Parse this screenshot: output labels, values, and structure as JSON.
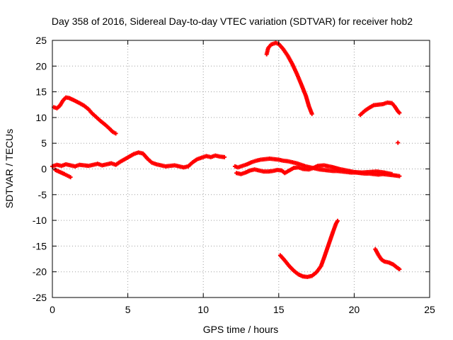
{
  "chart_data": {
    "type": "scatter",
    "title": "Day 358 of 2016, Sidereal Day-to-day VTEC variation (SDTVAR) for receiver hob2",
    "xlabel": "GPS time / hours",
    "ylabel": "SDTVAR / TECUs",
    "xlim": [
      0,
      25
    ],
    "ylim": [
      -25,
      25
    ],
    "xticks": [
      0,
      5,
      10,
      15,
      20,
      25
    ],
    "yticks": [
      -25,
      -20,
      -15,
      -10,
      -5,
      0,
      5,
      10,
      15,
      20,
      25
    ],
    "xtick_labels": [
      "0",
      "5",
      "10",
      "15",
      "20",
      "25"
    ],
    "ytick_labels": [
      "-25",
      "-20",
      "-15",
      "-10",
      "-5",
      "0",
      "5",
      "10",
      "15",
      "20",
      "25"
    ],
    "grid": true,
    "grid_style": "dotted",
    "marker": "plus",
    "colors": {
      "series": "#ff0000",
      "grid": "#a0a0a0",
      "frame": "#000000"
    },
    "series": [
      {
        "points": [
          [
            0.1,
            12.0
          ],
          [
            0.3,
            11.8
          ],
          [
            0.5,
            12.3
          ],
          [
            0.7,
            13.3
          ],
          [
            0.9,
            13.9
          ],
          [
            1.1,
            13.8
          ],
          [
            1.4,
            13.4
          ],
          [
            1.8,
            12.8
          ],
          [
            2.1,
            12.3
          ],
          [
            2.4,
            11.6
          ],
          [
            2.6,
            10.9
          ],
          [
            2.9,
            10.1
          ],
          [
            3.2,
            9.3
          ],
          [
            3.5,
            8.6
          ],
          [
            3.8,
            7.8
          ],
          [
            4.0,
            7.2
          ],
          [
            4.2,
            6.9
          ]
        ]
      },
      {
        "points": [
          [
            0.0,
            0.5
          ],
          [
            0.3,
            0.8
          ],
          [
            0.6,
            0.6
          ],
          [
            0.9,
            0.9
          ],
          [
            1.2,
            0.7
          ],
          [
            1.5,
            0.5
          ],
          [
            1.8,
            0.8
          ],
          [
            2.1,
            0.7
          ],
          [
            2.4,
            0.6
          ],
          [
            2.7,
            0.8
          ],
          [
            3.0,
            1.0
          ],
          [
            3.3,
            0.7
          ],
          [
            3.6,
            0.9
          ],
          [
            3.9,
            1.1
          ],
          [
            4.2,
            0.8
          ],
          [
            4.5,
            1.4
          ],
          [
            4.8,
            1.9
          ],
          [
            5.1,
            2.4
          ],
          [
            5.4,
            2.9
          ],
          [
            5.7,
            3.2
          ],
          [
            6.0,
            3.0
          ],
          [
            6.3,
            2.0
          ],
          [
            6.6,
            1.2
          ],
          [
            6.9,
            0.9
          ],
          [
            7.2,
            0.7
          ],
          [
            7.5,
            0.5
          ],
          [
            7.8,
            0.6
          ],
          [
            8.1,
            0.7
          ],
          [
            8.4,
            0.5
          ],
          [
            8.7,
            0.3
          ],
          [
            9.0,
            0.5
          ],
          [
            9.3,
            1.3
          ],
          [
            9.6,
            1.9
          ],
          [
            9.9,
            2.2
          ],
          [
            10.2,
            2.5
          ],
          [
            10.5,
            2.3
          ],
          [
            10.8,
            2.6
          ],
          [
            11.1,
            2.4
          ],
          [
            11.4,
            2.3
          ],
          [
            12.1,
            0.5
          ],
          [
            12.3,
            0.3
          ],
          [
            12.6,
            0.6
          ],
          [
            12.9,
            0.9
          ],
          [
            13.2,
            1.3
          ],
          [
            13.5,
            1.6
          ],
          [
            13.8,
            1.8
          ],
          [
            14.1,
            1.9
          ],
          [
            14.4,
            2.0
          ],
          [
            14.7,
            1.9
          ],
          [
            15.0,
            1.8
          ],
          [
            15.3,
            1.6
          ],
          [
            15.6,
            1.5
          ],
          [
            15.9,
            1.3
          ],
          [
            16.2,
            1.1
          ],
          [
            16.5,
            0.8
          ],
          [
            16.8,
            0.5
          ],
          [
            17.1,
            0.3
          ],
          [
            17.4,
            0.1
          ],
          [
            17.7,
            -0.1
          ],
          [
            18.0,
            -0.2
          ],
          [
            18.3,
            -0.3
          ],
          [
            18.6,
            -0.4
          ],
          [
            18.9,
            -0.4
          ],
          [
            19.2,
            -0.5
          ],
          [
            19.5,
            -0.6
          ],
          [
            19.8,
            -0.7
          ],
          [
            20.1,
            -0.7
          ],
          [
            20.4,
            -0.8
          ],
          [
            20.7,
            -0.9
          ],
          [
            21.0,
            -0.9
          ],
          [
            21.3,
            -1.0
          ],
          [
            21.6,
            -1.1
          ],
          [
            21.9,
            -1.0
          ],
          [
            22.2,
            -1.1
          ],
          [
            22.5,
            -1.2
          ],
          [
            22.8,
            -1.3
          ],
          [
            23.0,
            -1.4
          ]
        ]
      },
      {
        "points": [
          [
            0.2,
            -0.2
          ],
          [
            0.5,
            -0.6
          ],
          [
            0.8,
            -1.0
          ],
          [
            1.0,
            -1.3
          ],
          [
            1.2,
            -1.6
          ],
          [
            12.2,
            -0.8
          ],
          [
            12.5,
            -1.0
          ],
          [
            12.8,
            -0.7
          ],
          [
            13.1,
            -0.3
          ],
          [
            13.4,
            -0.1
          ],
          [
            13.7,
            -0.3
          ],
          [
            14.0,
            -0.5
          ],
          [
            14.3,
            -0.5
          ],
          [
            14.6,
            -0.4
          ],
          [
            14.9,
            -0.2
          ],
          [
            15.2,
            -0.3
          ],
          [
            15.4,
            -0.8
          ],
          [
            16.0,
            0.2
          ],
          [
            16.3,
            0.3
          ],
          [
            16.6,
            0.0
          ],
          [
            17.0,
            -0.1
          ],
          [
            17.3,
            0.2
          ],
          [
            17.6,
            0.6
          ],
          [
            18.0,
            0.7
          ],
          [
            18.5,
            0.4
          ],
          [
            19.0,
            0.0
          ],
          [
            19.5,
            -0.3
          ],
          [
            20.0,
            -0.6
          ],
          [
            20.5,
            -0.7
          ],
          [
            21.0,
            -0.6
          ],
          [
            21.5,
            -0.5
          ],
          [
            22.0,
            -0.7
          ],
          [
            22.5,
            -1.0
          ]
        ]
      },
      {
        "points": [
          [
            14.2,
            22.3
          ],
          [
            14.3,
            23.5
          ],
          [
            14.5,
            24.2
          ],
          [
            14.8,
            24.5
          ],
          [
            15.0,
            24.3
          ],
          [
            15.3,
            23.3
          ],
          [
            15.6,
            22.0
          ],
          [
            15.9,
            20.4
          ],
          [
            16.2,
            18.5
          ],
          [
            16.5,
            16.4
          ],
          [
            16.8,
            14.2
          ],
          [
            17.0,
            12.2
          ],
          [
            17.2,
            10.7
          ]
        ]
      },
      {
        "points": [
          [
            20.4,
            10.5
          ],
          [
            20.7,
            11.3
          ],
          [
            21.0,
            11.9
          ],
          [
            21.3,
            12.4
          ],
          [
            21.6,
            12.5
          ],
          [
            21.9,
            12.6
          ],
          [
            22.2,
            12.9
          ],
          [
            22.5,
            12.8
          ],
          [
            22.7,
            12.1
          ],
          [
            22.9,
            11.2
          ],
          [
            23.0,
            10.9
          ]
        ]
      },
      {
        "points": [
          [
            22.9,
            5.1
          ]
        ]
      },
      {
        "points": [
          [
            15.1,
            -16.8
          ],
          [
            15.4,
            -17.8
          ],
          [
            15.7,
            -18.9
          ],
          [
            16.0,
            -19.8
          ],
          [
            16.3,
            -20.5
          ],
          [
            16.6,
            -20.9
          ],
          [
            16.9,
            -21.0
          ],
          [
            17.2,
            -20.8
          ],
          [
            17.5,
            -20.1
          ],
          [
            17.8,
            -18.9
          ],
          [
            18.0,
            -17.3
          ],
          [
            18.2,
            -15.6
          ],
          [
            18.4,
            -13.9
          ],
          [
            18.6,
            -12.2
          ],
          [
            18.8,
            -10.6
          ],
          [
            18.9,
            -10.1
          ]
        ]
      },
      {
        "points": [
          [
            21.4,
            -15.6
          ],
          [
            21.6,
            -16.7
          ],
          [
            21.8,
            -17.6
          ],
          [
            22.0,
            -18.0
          ],
          [
            22.3,
            -18.2
          ],
          [
            22.6,
            -18.6
          ],
          [
            22.8,
            -19.1
          ],
          [
            23.0,
            -19.5
          ]
        ]
      }
    ]
  }
}
